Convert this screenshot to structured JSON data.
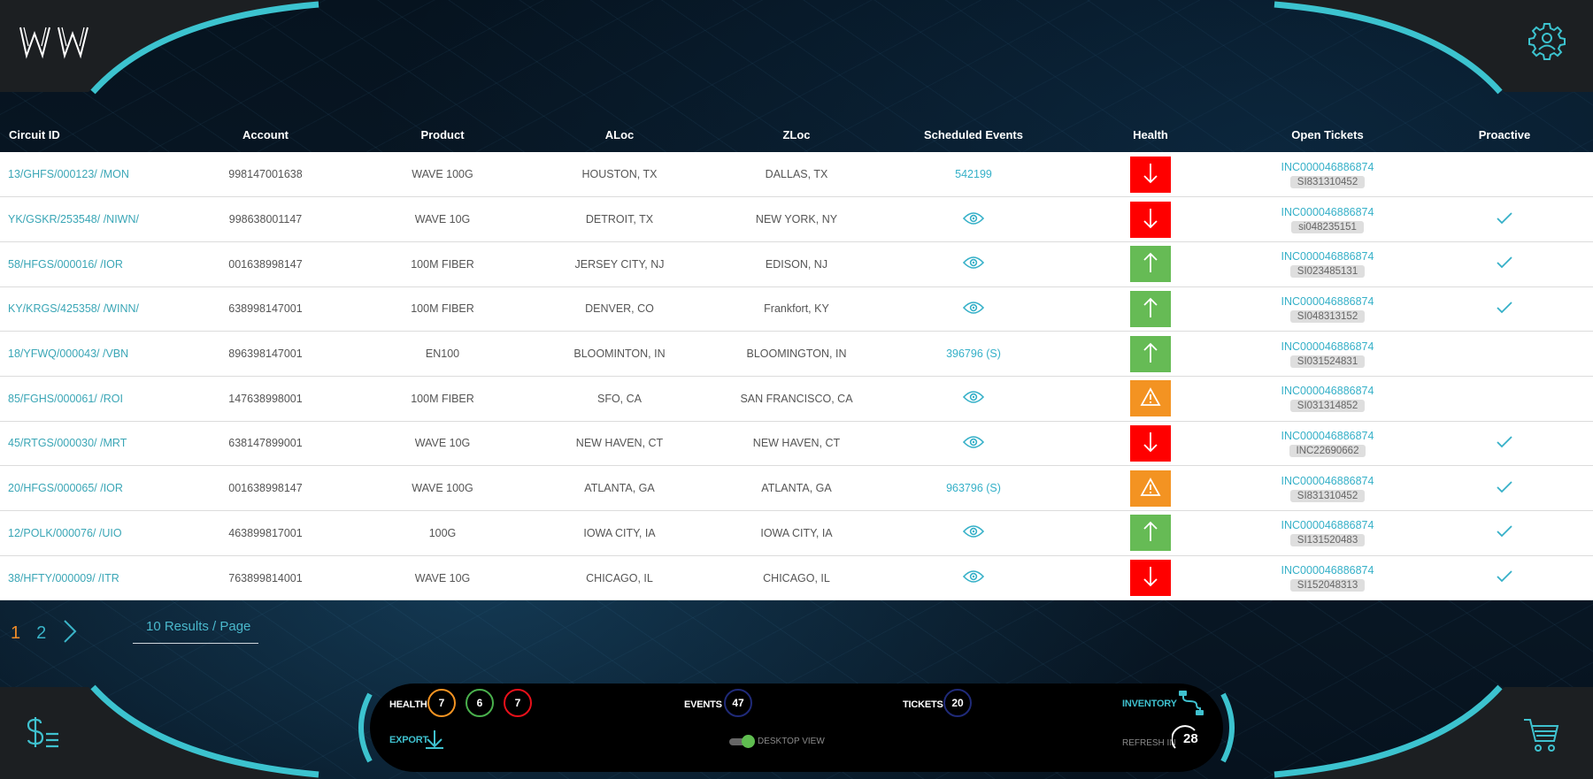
{
  "app": {
    "logo_text": "WW"
  },
  "table": {
    "columns": [
      "Circuit ID",
      "Account",
      "Product",
      "ALoc",
      "ZLoc",
      "Scheduled Events",
      "Health",
      "Open Tickets",
      "Proactive"
    ],
    "rows": [
      {
        "circuit_id": "13/GHFS/000123/ /MON",
        "account": "998147001638",
        "product": "WAVE 100G",
        "aloc": "HOUSTON, TX",
        "zloc": "DALLAS, TX",
        "event": "542199",
        "health": "down",
        "ticket_inc": "INC000046886874",
        "ticket_si": "SI831310452",
        "proactive": false
      },
      {
        "circuit_id": "YK/GSKR/253548/ /NIWN/",
        "account": "998638001147",
        "product": "WAVE 10G",
        "aloc": "DETROIT, TX",
        "zloc": "NEW YORK, NY",
        "event": "view",
        "health": "down",
        "ticket_inc": "INC000046886874",
        "ticket_si": "si048235151",
        "proactive": true
      },
      {
        "circuit_id": "58/HFGS/000016/ /IOR",
        "account": "001638998147",
        "product": "100M FIBER",
        "aloc": "JERSEY CITY, NJ",
        "zloc": "EDISON, NJ",
        "event": "view",
        "health": "up",
        "ticket_inc": "INC000046886874",
        "ticket_si": "SI023485131",
        "proactive": true
      },
      {
        "circuit_id": "KY/KRGS/425358/ /WINN/",
        "account": "638998147001",
        "product": "100M FIBER",
        "aloc": "DENVER, CO",
        "zloc": "Frankfort, KY",
        "event": "view",
        "health": "up",
        "ticket_inc": "INC000046886874",
        "ticket_si": "SI048313152",
        "proactive": true
      },
      {
        "circuit_id": "18/YFWQ/000043/ /VBN",
        "account": "896398147001",
        "product": "EN100",
        "aloc": "BLOOMINTON, IN",
        "zloc": "BLOOMINGTON, IN",
        "event": "396796 (S)",
        "health": "up",
        "ticket_inc": "INC000046886874",
        "ticket_si": "SI031524831",
        "proactive": false
      },
      {
        "circuit_id": "85/FGHS/000061/ /ROI",
        "account": "147638998001",
        "product": "100M FIBER",
        "aloc": "SFO, CA",
        "zloc": "SAN FRANCISCO, CA",
        "event": "view",
        "health": "warn",
        "ticket_inc": "INC000046886874",
        "ticket_si": "SI031314852",
        "proactive": false
      },
      {
        "circuit_id": "45/RTGS/000030/ /MRT",
        "account": "638147899001",
        "product": "WAVE 10G",
        "aloc": "NEW HAVEN, CT",
        "zloc": "NEW HAVEN, CT",
        "event": "view",
        "health": "down",
        "ticket_inc": "INC000046886874",
        "ticket_si": "INC22690662",
        "proactive": true
      },
      {
        "circuit_id": "20/HFGS/000065/ /IOR",
        "account": "001638998147",
        "product": "WAVE 100G",
        "aloc": "ATLANTA, GA",
        "zloc": "ATLANTA, GA",
        "event": "963796 (S)",
        "health": "warn",
        "ticket_inc": "INC000046886874",
        "ticket_si": "SI831310452",
        "proactive": true
      },
      {
        "circuit_id": "12/POLK/000076/ /UIO",
        "account": "463899817001",
        "product": "100G",
        "aloc": "IOWA CITY, IA",
        "zloc": "IOWA CITY, IA",
        "event": "view",
        "health": "up",
        "ticket_inc": "INC000046886874",
        "ticket_si": "SI131520483",
        "proactive": true
      },
      {
        "circuit_id": "38/HFTY/000009/ /ITR",
        "account": "763899814001",
        "product": "WAVE 10G",
        "aloc": "CHICAGO, IL",
        "zloc": "CHICAGO, IL",
        "event": "view",
        "health": "down",
        "ticket_inc": "INC000046886874",
        "ticket_si": "SI152048313",
        "proactive": true
      }
    ]
  },
  "pagination": {
    "pages": [
      "1",
      "2"
    ],
    "results_per_page": "10  Results / Page"
  },
  "summary": {
    "health_label": "HEALTH",
    "health_counts": {
      "warning": "7",
      "good": "6",
      "critical": "7"
    },
    "events_label": "EVENTS",
    "events_count": "47",
    "tickets_label": "TICKETS",
    "tickets_count": "20",
    "inventory_label": "INVENTORY",
    "export_label": "EXPORT",
    "desktop_view_label": "DESKTOP VIEW",
    "refresh_label": "REFRESH IN",
    "refresh_value": "28"
  },
  "colors": {
    "teal": "#3fc1cf",
    "down": "#ff0000",
    "up": "#66bb55",
    "warn": "#f39322",
    "warning_ring": "#f39322",
    "good_ring": "#49b04c",
    "critical_ring": "#e8101a",
    "count_ring": "#1f2a78"
  },
  "icons": {
    "logo": "ww-logo",
    "settings": "gear-icon",
    "billing": "dollar-list-icon",
    "cart": "cart-icon",
    "view": "eye-icon",
    "proactive": "check-icon",
    "export": "download-icon",
    "inventory": "route-icon",
    "next": "chevron-right-icon"
  }
}
